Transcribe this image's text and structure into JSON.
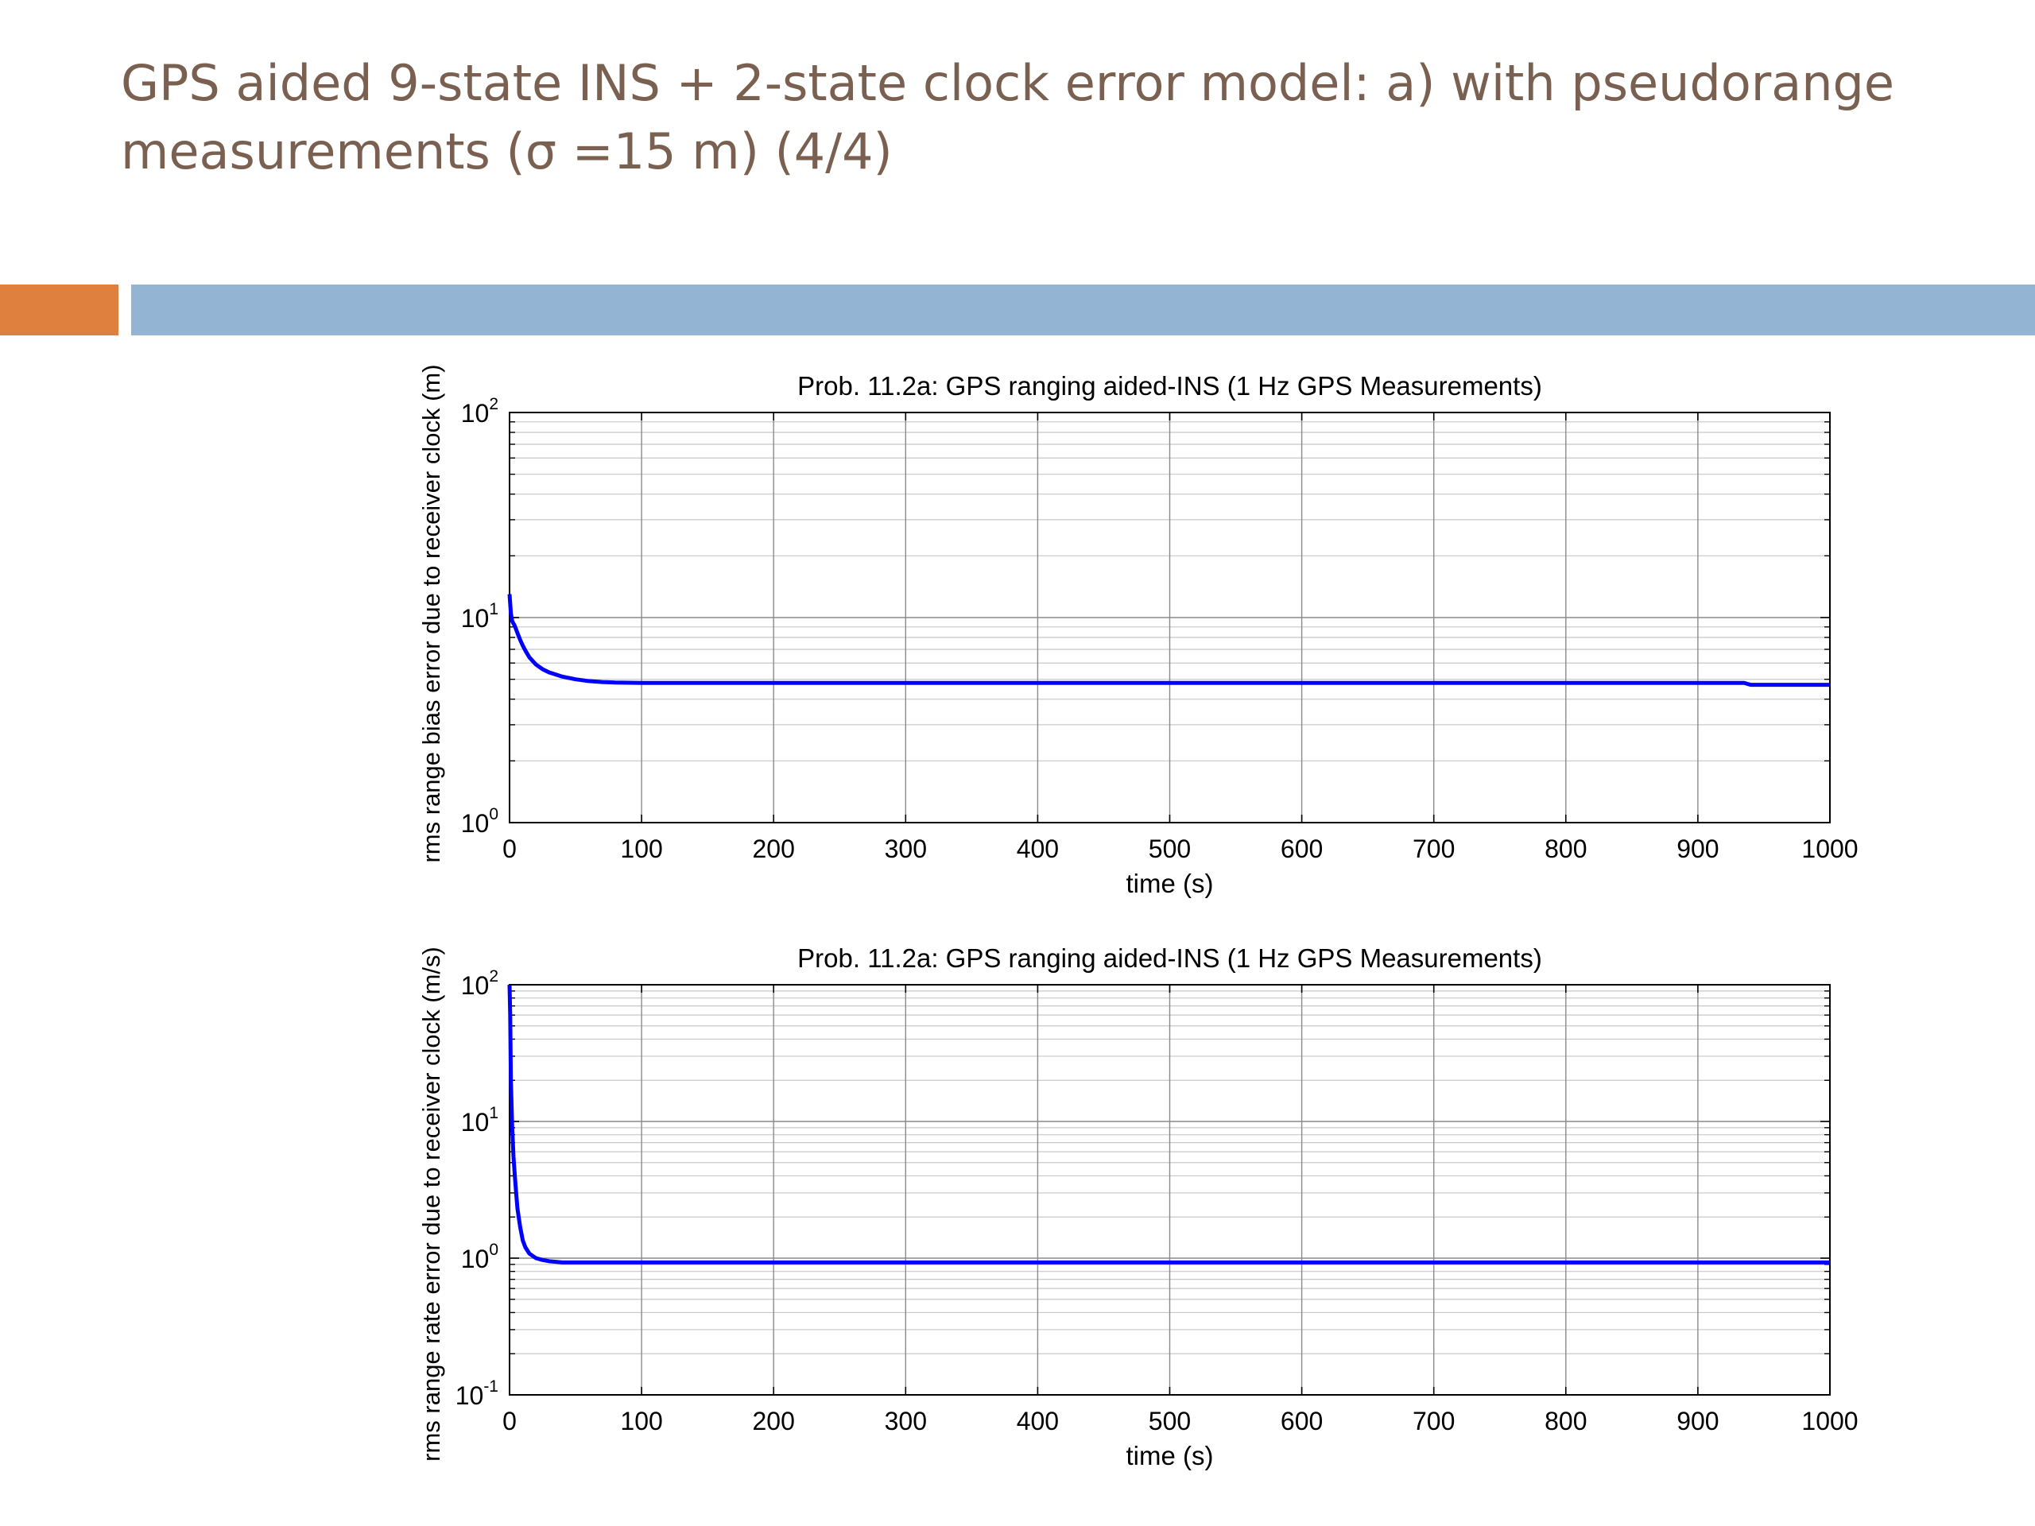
{
  "slide": {
    "title_line1": "GPS aided 9-state INS + 2-state clock error model: a) with pseudorange",
    "title_line2": "measurements (σ =15 m) (4/4)",
    "accent_orange": "#e0803f",
    "accent_blue": "#93b4d3"
  },
  "chart_data": [
    {
      "type": "line",
      "title": "Prob. 11.2a: GPS ranging aided-INS (1 Hz GPS Measurements)",
      "xlabel": "time (s)",
      "ylabel": "rms range bias error due to receiver clock (m)",
      "x_scale": "linear",
      "y_scale": "log",
      "xlim": [
        0,
        1000
      ],
      "ylim": [
        1,
        100
      ],
      "x_ticks": [
        "0",
        "100",
        "200",
        "300",
        "400",
        "500",
        "600",
        "700",
        "800",
        "900",
        "1000"
      ],
      "y_ticks": [
        {
          "base": "10",
          "exp": "0"
        },
        {
          "base": "10",
          "exp": "1"
        },
        {
          "base": "10",
          "exp": "2"
        }
      ],
      "grid": true,
      "line_color": "#0000ff",
      "series": [
        {
          "x": [
            0,
            1,
            2,
            4,
            6,
            8,
            10,
            12,
            15,
            20,
            25,
            30,
            40,
            50,
            60,
            70,
            80,
            100,
            200,
            400,
            600,
            800,
            935,
            940,
            1000
          ],
          "y": [
            13.0,
            10.5,
            9.6,
            9.1,
            8.4,
            7.8,
            7.3,
            6.9,
            6.4,
            5.9,
            5.6,
            5.4,
            5.15,
            5.0,
            4.9,
            4.85,
            4.82,
            4.8,
            4.8,
            4.8,
            4.8,
            4.8,
            4.8,
            4.7,
            4.7
          ]
        }
      ]
    },
    {
      "type": "line",
      "title": "Prob. 11.2a: GPS ranging aided-INS (1 Hz GPS Measurements)",
      "xlabel": "time (s)",
      "ylabel": "rms range rate error due to receiver clock (m/s)",
      "x_scale": "linear",
      "y_scale": "log",
      "xlim": [
        0,
        1000
      ],
      "ylim": [
        0.1,
        100
      ],
      "x_ticks": [
        "0",
        "100",
        "200",
        "300",
        "400",
        "500",
        "600",
        "700",
        "800",
        "900",
        "1000"
      ],
      "y_ticks": [
        {
          "base": "10",
          "exp": "-1"
        },
        {
          "base": "10",
          "exp": "0"
        },
        {
          "base": "10",
          "exp": "1"
        },
        {
          "base": "10",
          "exp": "2"
        }
      ],
      "grid": true,
      "line_color": "#0000ff",
      "series": [
        {
          "x": [
            0,
            0.5,
            1,
            2,
            3,
            4,
            5,
            6,
            8,
            10,
            12,
            15,
            20,
            25,
            30,
            35,
            40,
            50,
            100,
            500,
            1000
          ],
          "y": [
            100,
            60,
            20,
            9,
            5.5,
            4.0,
            3.0,
            2.3,
            1.7,
            1.35,
            1.2,
            1.08,
            1.0,
            0.97,
            0.95,
            0.94,
            0.93,
            0.93,
            0.93,
            0.93,
            0.93
          ]
        }
      ]
    }
  ]
}
